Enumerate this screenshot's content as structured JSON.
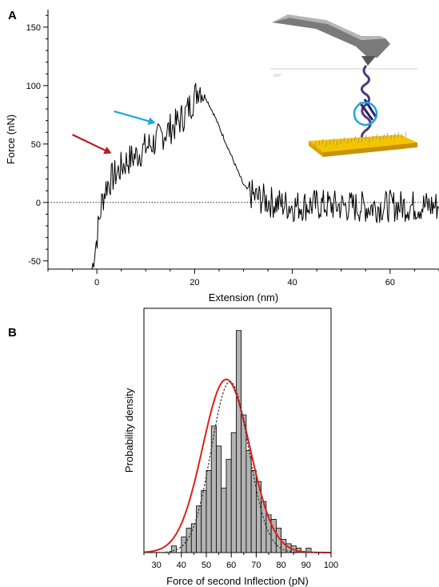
{
  "panel_a": {
    "label": "A",
    "chart_data": {
      "type": "line",
      "xlabel": "Extension (nm)",
      "ylabel": "Force (nN)",
      "xlim": [
        -10,
        70
      ],
      "ylim": [
        -57,
        165
      ],
      "x_ticks": [
        0,
        20,
        40,
        60
      ],
      "y_ticks": [
        -50,
        0,
        50,
        100,
        150
      ],
      "zero_line": true,
      "series": [
        {
          "x": [
            -1,
            0,
            1,
            2,
            4,
            6,
            8,
            10,
            12,
            14,
            16,
            18,
            20,
            21,
            22,
            24,
            26,
            28,
            30,
            32,
            36,
            40,
            45,
            50,
            55,
            60,
            65,
            70
          ],
          "y": [
            -58,
            -30,
            0,
            15,
            25,
            35,
            40,
            47,
            52,
            60,
            66,
            75,
            90,
            100,
            92,
            75,
            55,
            35,
            15,
            5,
            0,
            -3,
            -2,
            -3,
            -4,
            -3,
            -3,
            -3
          ]
        }
      ],
      "arrows": [
        {
          "color": "#b51b1b",
          "points_to_x": 3,
          "points_to_y": 42
        },
        {
          "color": "#1ba7e0",
          "points_to_x": 12,
          "points_to_y": 68
        }
      ]
    }
  },
  "panel_b": {
    "label": "B",
    "chart_data": {
      "type": "bar",
      "xlabel": "Force of second Inflection (pN)",
      "ylabel": "Probability density",
      "xlim": [
        25,
        100
      ],
      "ylim": [
        0,
        1.1
      ],
      "x_ticks": [
        30,
        40,
        50,
        60,
        70,
        80,
        90,
        100
      ],
      "bin_width": 2,
      "bin_starts": [
        36,
        38,
        40,
        42,
        44,
        46,
        48,
        50,
        52,
        54,
        56,
        58,
        60,
        62,
        64,
        66,
        68,
        70,
        72,
        74,
        76,
        78,
        80,
        82,
        84,
        86,
        88,
        90
      ],
      "values": [
        0.03,
        0.0,
        0.07,
        0.11,
        0.13,
        0.21,
        0.28,
        0.37,
        0.57,
        0.48,
        0.29,
        0.42,
        0.54,
        1.0,
        0.62,
        0.46,
        0.37,
        0.32,
        0.23,
        0.17,
        0.15,
        0.11,
        0.06,
        0.04,
        0.03,
        0.02,
        0.0,
        0.02
      ],
      "fits": [
        {
          "style": "solid",
          "color": "#e0201b",
          "mean": 58,
          "sd": 9.5,
          "peak": 0.78
        },
        {
          "style": "dashed",
          "color": "#333333",
          "mean": 59.5,
          "sd": 7.5,
          "peak": 0.77
        }
      ],
      "bar_color": "#b3b3b3"
    }
  }
}
